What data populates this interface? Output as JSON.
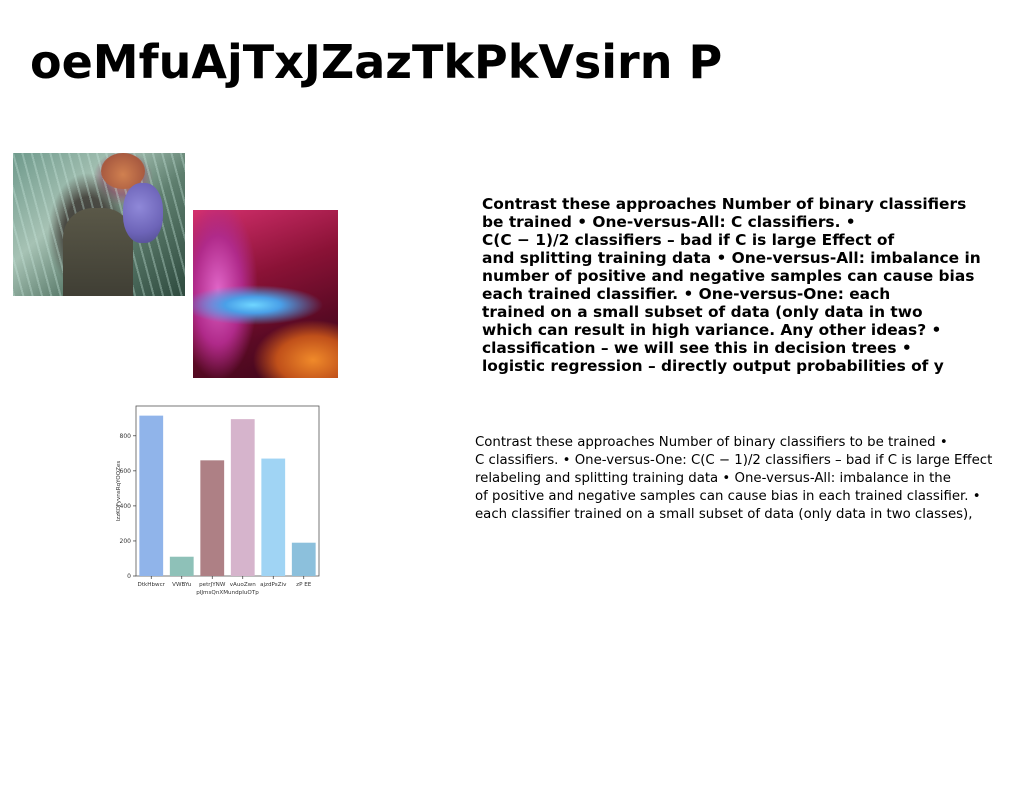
{
  "title": "oeMfuAjTxJZazTkPkVsirn P",
  "images": {
    "photo": "photo-man-in-grass",
    "abstract": "abstract-gradient-art"
  },
  "bold_paragraph": [
    "Contrast these approaches Number of binary classifiers",
    "be trained • One-versus-All: C classifiers. •",
    "C(C − 1)/2 classifiers – bad if C is large Effect of",
    "and splitting training data • One-versus-All: imbalance in",
    "number of positive and negative samples can cause bias",
    "each trained classifier. • One-versus-One: each",
    "trained on a small subset of data (only data in two",
    "which can result in high variance. Any other ideas? •",
    "classification – we will see this in decision trees •",
    "logistic regression – directly output probabilities of y"
  ],
  "plain_paragraph": [
    "Contrast these approaches Number of binary classifiers to be trained •",
    "C classifiers. • One-versus-One: C(C − 1)/2 classifiers – bad if C is large Effect",
    "relabeling and splitting training data • One-versus-All: imbalance in the",
    "of positive and negative samples can cause bias in each trained classifier. •",
    "each classifier trained on a small subset of data (only data in two classes),"
  ],
  "chart_data": {
    "type": "bar",
    "categories": [
      "DtkHbwcr",
      "VWBYu",
      "petrJYNW",
      "vAuoZwn",
      "ajzdPsZiv",
      "zP EE"
    ],
    "values": [
      915,
      110,
      660,
      895,
      670,
      190
    ],
    "colors": [
      "#90b4ea",
      "#8ec1b8",
      "#ae8085",
      "#d6b4cc",
      "#a0d4f4",
      "#8cc0dc"
    ],
    "xlabel": "pIJmsQnXMundpIuOTp",
    "ylabel": "lzzKOFyvnsRqYOOZes",
    "yticks": [
      0,
      200,
      400,
      600,
      800
    ],
    "ylim": [
      0,
      970
    ]
  }
}
